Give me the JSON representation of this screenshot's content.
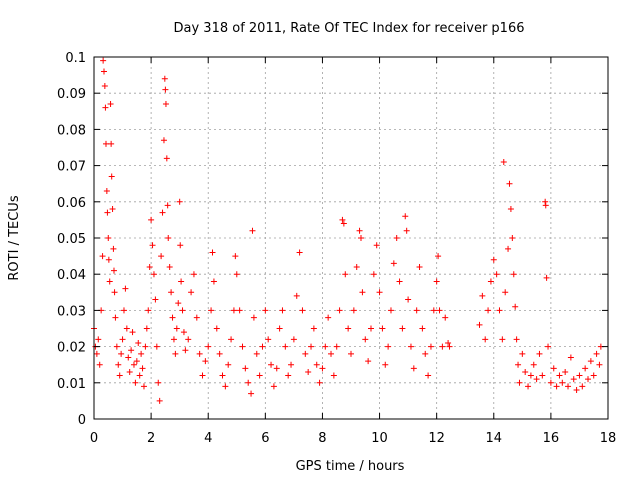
{
  "chart_data": {
    "type": "scatter",
    "title": "Day 318 of 2011, Rate Of TEC Index for receiver p166",
    "xlabel": "GPS time / hours",
    "ylabel": "ROTI / TECUs",
    "xlim": [
      0,
      18
    ],
    "ylim": [
      0,
      0.1
    ],
    "x_ticks": [
      "0",
      "2",
      "4",
      "6",
      "8",
      "10",
      "12",
      "14",
      "16",
      "18"
    ],
    "y_ticks": [
      "0",
      "0.01",
      "0.02",
      "0.03",
      "0.04",
      "0.05",
      "0.06",
      "0.07",
      "0.08",
      "0.09",
      "0.1"
    ],
    "grid": true,
    "marker": "+",
    "color": "#ff0000",
    "series": [
      {
        "points": [
          [
            0.0,
            0.025
          ],
          [
            0.05,
            0.02
          ],
          [
            0.1,
            0.018
          ],
          [
            0.15,
            0.022
          ],
          [
            0.2,
            0.015
          ],
          [
            0.25,
            0.03
          ],
          [
            0.3,
            0.045
          ],
          [
            0.32,
            0.099
          ],
          [
            0.35,
            0.096
          ],
          [
            0.38,
            0.092
          ],
          [
            0.4,
            0.086
          ],
          [
            0.42,
            0.076
          ],
          [
            0.45,
            0.063
          ],
          [
            0.47,
            0.057
          ],
          [
            0.5,
            0.05
          ],
          [
            0.52,
            0.044
          ],
          [
            0.55,
            0.038
          ],
          [
            0.58,
            0.087
          ],
          [
            0.6,
            0.076
          ],
          [
            0.62,
            0.067
          ],
          [
            0.65,
            0.058
          ],
          [
            0.68,
            0.047
          ],
          [
            0.7,
            0.041
          ],
          [
            0.72,
            0.035
          ],
          [
            0.75,
            0.028
          ],
          [
            0.8,
            0.02
          ],
          [
            0.85,
            0.015
          ],
          [
            0.9,
            0.012
          ],
          [
            0.95,
            0.018
          ],
          [
            1.0,
            0.022
          ],
          [
            1.05,
            0.03
          ],
          [
            1.1,
            0.036
          ],
          [
            1.15,
            0.025
          ],
          [
            1.2,
            0.017
          ],
          [
            1.25,
            0.013
          ],
          [
            1.3,
            0.019
          ],
          [
            1.35,
            0.024
          ],
          [
            1.4,
            0.015
          ],
          [
            1.45,
            0.01
          ],
          [
            1.5,
            0.016
          ],
          [
            1.55,
            0.021
          ],
          [
            1.6,
            0.012
          ],
          [
            1.65,
            0.018
          ],
          [
            1.7,
            0.014
          ],
          [
            1.75,
            0.009
          ],
          [
            1.8,
            0.02
          ],
          [
            1.85,
            0.025
          ],
          [
            1.9,
            0.03
          ],
          [
            1.95,
            0.042
          ],
          [
            2.0,
            0.055
          ],
          [
            2.05,
            0.048
          ],
          [
            2.1,
            0.04
          ],
          [
            2.15,
            0.033
          ],
          [
            2.2,
            0.02
          ],
          [
            2.25,
            0.01
          ],
          [
            2.3,
            0.005
          ],
          [
            2.35,
            0.045
          ],
          [
            2.4,
            0.057
          ],
          [
            2.45,
            0.077
          ],
          [
            2.48,
            0.094
          ],
          [
            2.5,
            0.091
          ],
          [
            2.52,
            0.087
          ],
          [
            2.55,
            0.072
          ],
          [
            2.58,
            0.059
          ],
          [
            2.6,
            0.05
          ],
          [
            2.65,
            0.042
          ],
          [
            2.7,
            0.035
          ],
          [
            2.75,
            0.028
          ],
          [
            2.8,
            0.022
          ],
          [
            2.85,
            0.018
          ],
          [
            2.9,
            0.025
          ],
          [
            2.95,
            0.032
          ],
          [
            3.0,
            0.06
          ],
          [
            3.02,
            0.048
          ],
          [
            3.05,
            0.038
          ],
          [
            3.1,
            0.03
          ],
          [
            3.15,
            0.024
          ],
          [
            3.2,
            0.019
          ],
          [
            3.3,
            0.022
          ],
          [
            3.4,
            0.035
          ],
          [
            3.5,
            0.04
          ],
          [
            3.6,
            0.028
          ],
          [
            3.7,
            0.018
          ],
          [
            3.8,
            0.012
          ],
          [
            3.9,
            0.016
          ],
          [
            4.0,
            0.02
          ],
          [
            4.1,
            0.03
          ],
          [
            4.15,
            0.046
          ],
          [
            4.2,
            0.038
          ],
          [
            4.3,
            0.025
          ],
          [
            4.4,
            0.018
          ],
          [
            4.5,
            0.012
          ],
          [
            4.6,
            0.009
          ],
          [
            4.7,
            0.015
          ],
          [
            4.8,
            0.022
          ],
          [
            4.9,
            0.03
          ],
          [
            4.95,
            0.045
          ],
          [
            5.0,
            0.04
          ],
          [
            5.1,
            0.03
          ],
          [
            5.2,
            0.02
          ],
          [
            5.3,
            0.014
          ],
          [
            5.4,
            0.01
          ],
          [
            5.5,
            0.007
          ],
          [
            5.55,
            0.052
          ],
          [
            5.6,
            0.028
          ],
          [
            5.7,
            0.018
          ],
          [
            5.8,
            0.012
          ],
          [
            5.9,
            0.02
          ],
          [
            6.0,
            0.03
          ],
          [
            6.1,
            0.022
          ],
          [
            6.2,
            0.015
          ],
          [
            6.3,
            0.009
          ],
          [
            6.4,
            0.014
          ],
          [
            6.5,
            0.025
          ],
          [
            6.6,
            0.03
          ],
          [
            6.7,
            0.02
          ],
          [
            6.8,
            0.012
          ],
          [
            6.9,
            0.015
          ],
          [
            7.0,
            0.022
          ],
          [
            7.1,
            0.034
          ],
          [
            7.2,
            0.046
          ],
          [
            7.3,
            0.03
          ],
          [
            7.4,
            0.018
          ],
          [
            7.5,
            0.013
          ],
          [
            7.6,
            0.02
          ],
          [
            7.7,
            0.025
          ],
          [
            7.8,
            0.015
          ],
          [
            7.9,
            0.01
          ],
          [
            8.0,
            0.014
          ],
          [
            8.1,
            0.02
          ],
          [
            8.2,
            0.028
          ],
          [
            8.3,
            0.018
          ],
          [
            8.4,
            0.012
          ],
          [
            8.5,
            0.02
          ],
          [
            8.6,
            0.03
          ],
          [
            8.7,
            0.055
          ],
          [
            8.75,
            0.054
          ],
          [
            8.8,
            0.04
          ],
          [
            8.9,
            0.025
          ],
          [
            9.0,
            0.018
          ],
          [
            9.1,
            0.03
          ],
          [
            9.2,
            0.042
          ],
          [
            9.3,
            0.052
          ],
          [
            9.35,
            0.05
          ],
          [
            9.4,
            0.035
          ],
          [
            9.5,
            0.022
          ],
          [
            9.6,
            0.016
          ],
          [
            9.7,
            0.025
          ],
          [
            9.8,
            0.04
          ],
          [
            9.9,
            0.048
          ],
          [
            10.0,
            0.035
          ],
          [
            10.1,
            0.025
          ],
          [
            10.2,
            0.015
          ],
          [
            10.3,
            0.02
          ],
          [
            10.4,
            0.03
          ],
          [
            10.5,
            0.043
          ],
          [
            10.6,
            0.05
          ],
          [
            10.7,
            0.038
          ],
          [
            10.8,
            0.025
          ],
          [
            10.9,
            0.056
          ],
          [
            10.95,
            0.052
          ],
          [
            11.0,
            0.033
          ],
          [
            11.1,
            0.02
          ],
          [
            11.2,
            0.014
          ],
          [
            11.3,
            0.03
          ],
          [
            11.4,
            0.042
          ],
          [
            11.5,
            0.025
          ],
          [
            11.6,
            0.018
          ],
          [
            11.7,
            0.012
          ],
          [
            11.8,
            0.02
          ],
          [
            11.9,
            0.03
          ],
          [
            12.0,
            0.038
          ],
          [
            12.05,
            0.045
          ],
          [
            12.1,
            0.03
          ],
          [
            12.2,
            0.02
          ],
          [
            12.3,
            0.028
          ],
          [
            12.4,
            0.021
          ],
          [
            12.45,
            0.02
          ],
          [
            13.5,
            0.026
          ],
          [
            13.6,
            0.034
          ],
          [
            13.7,
            0.022
          ],
          [
            13.8,
            0.03
          ],
          [
            13.9,
            0.038
          ],
          [
            14.0,
            0.044
          ],
          [
            14.1,
            0.04
          ],
          [
            14.2,
            0.03
          ],
          [
            14.3,
            0.022
          ],
          [
            14.35,
            0.071
          ],
          [
            14.4,
            0.035
          ],
          [
            14.5,
            0.047
          ],
          [
            14.55,
            0.065
          ],
          [
            14.6,
            0.058
          ],
          [
            14.65,
            0.05
          ],
          [
            14.7,
            0.04
          ],
          [
            14.75,
            0.031
          ],
          [
            14.8,
            0.022
          ],
          [
            14.85,
            0.015
          ],
          [
            14.9,
            0.01
          ],
          [
            15.0,
            0.018
          ],
          [
            15.1,
            0.013
          ],
          [
            15.2,
            0.009
          ],
          [
            15.3,
            0.012
          ],
          [
            15.4,
            0.015
          ],
          [
            15.5,
            0.011
          ],
          [
            15.6,
            0.018
          ],
          [
            15.7,
            0.012
          ],
          [
            15.8,
            0.06
          ],
          [
            15.82,
            0.059
          ],
          [
            15.85,
            0.039
          ],
          [
            15.9,
            0.02
          ],
          [
            16.0,
            0.01
          ],
          [
            16.1,
            0.014
          ],
          [
            16.2,
            0.009
          ],
          [
            16.3,
            0.012
          ],
          [
            16.4,
            0.01
          ],
          [
            16.5,
            0.013
          ],
          [
            16.6,
            0.009
          ],
          [
            16.7,
            0.017
          ],
          [
            16.8,
            0.011
          ],
          [
            16.9,
            0.008
          ],
          [
            17.0,
            0.012
          ],
          [
            17.1,
            0.009
          ],
          [
            17.2,
            0.014
          ],
          [
            17.3,
            0.011
          ],
          [
            17.4,
            0.016
          ],
          [
            17.5,
            0.012
          ],
          [
            17.6,
            0.018
          ],
          [
            17.7,
            0.015
          ],
          [
            17.75,
            0.02
          ]
        ]
      }
    ]
  }
}
